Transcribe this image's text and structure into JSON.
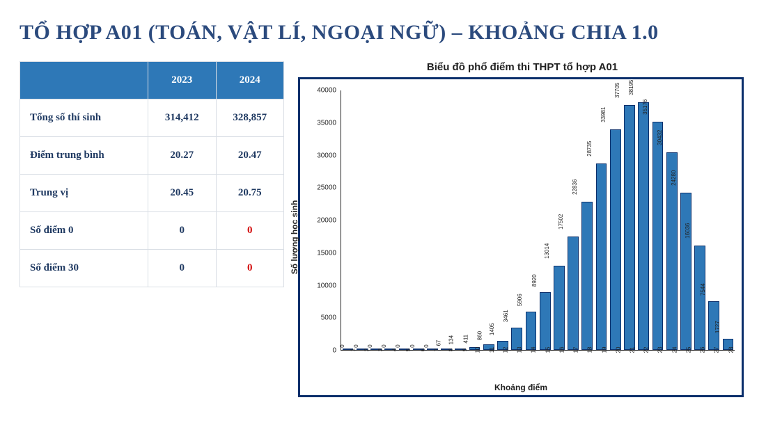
{
  "title": "TỔ HỢP A01 (TOÁN, VẬT LÍ, NGOẠI NGỮ) – KHOẢNG CHIA 1.0",
  "title_color": "#2b4a7d",
  "title_fontsize": 30,
  "table": {
    "header_bg": "#2e78b7",
    "header_fg": "#ffffff",
    "border_color": "#d9dee5",
    "cell_fontsize": 15,
    "columns": [
      "",
      "2023",
      "2024"
    ],
    "rows": [
      {
        "label": "Tổng số thí sinh",
        "c2023": "314,412",
        "c2024": "328,857",
        "hl2024": false
      },
      {
        "label": "Điểm trung bình",
        "c2023": "20.27",
        "c2024": "20.47",
        "hl2024": false
      },
      {
        "label": "Trung vị",
        "c2023": "20.45",
        "c2024": "20.75",
        "hl2024": false
      },
      {
        "label": "Số điểm 0",
        "c2023": "0",
        "c2024": "0",
        "hl2024": true
      },
      {
        "label": "Số điểm 30",
        "c2023": "0",
        "c2024": "0",
        "hl2024": true
      }
    ],
    "highlight_color": "#d20a0a"
  },
  "chart": {
    "type": "bar",
    "title": "Biểu đồ phổ điểm thi THPT tổ hợp A01",
    "title_fontsize": 15,
    "xlabel": "Khoảng điểm",
    "ylabel": "Số lượng học sinh",
    "label_fontsize": 12,
    "frame_border_color": "#0b2f6b",
    "bar_fill": "#2e78b7",
    "bar_border": "#0b2f6b",
    "background_color": "#ffffff",
    "bar_width": 0.82,
    "ylim": [
      0,
      40000
    ],
    "ytick_step": 5000,
    "categories": [
      1,
      2,
      3,
      4,
      5,
      6,
      7,
      8,
      9,
      10,
      11,
      12,
      13,
      14,
      15,
      16,
      17,
      18,
      19,
      20,
      21,
      22,
      23,
      24,
      25,
      26,
      27,
      28
    ],
    "values": [
      0,
      0,
      0,
      0,
      0,
      0,
      0,
      67,
      134,
      411,
      860,
      1405,
      3461,
      5906,
      8920,
      13014,
      17502,
      22836,
      28735,
      33981,
      37705,
      38195,
      35176,
      30432,
      24280,
      16036,
      7544,
      1727
    ],
    "value_labels": [
      "0",
      "0",
      "0",
      "0",
      "0",
      "0",
      "0",
      "67",
      "134",
      "411",
      "860",
      "1405",
      "3461",
      "5906",
      "8920",
      "13014",
      "17502",
      "22836",
      "28735",
      "33981",
      "37705",
      "38195",
      "35176",
      "30432",
      "24280",
      "16036",
      "7544",
      "1727"
    ]
  }
}
